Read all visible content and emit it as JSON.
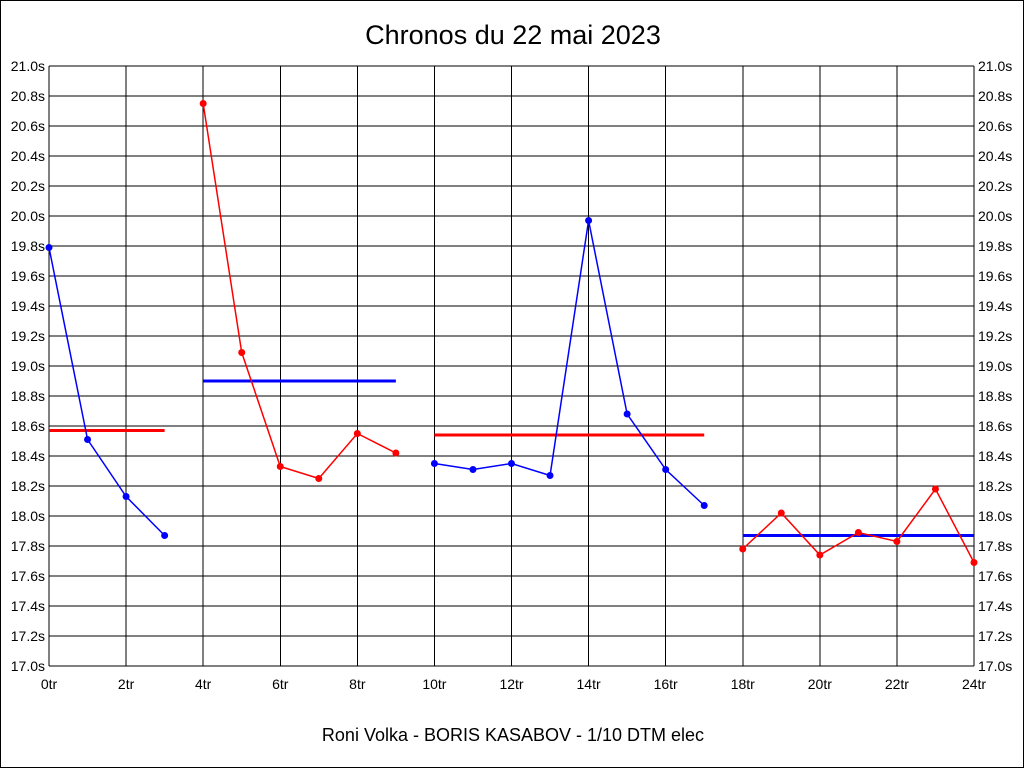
{
  "chart_data": {
    "type": "line",
    "title": "Chronos du 22 mai 2023",
    "xlabel": "Roni Volka - BORIS KASABOV - 1/10 DTM elec",
    "ylabel": "",
    "xlim": [
      0,
      24
    ],
    "ylim": [
      17.0,
      21.0
    ],
    "grid": true,
    "x_ticks": [
      "0tr",
      "2tr",
      "4tr",
      "6tr",
      "8tr",
      "10tr",
      "12tr",
      "14tr",
      "16tr",
      "18tr",
      "20tr",
      "22tr",
      "24tr"
    ],
    "y_ticks": [
      "17.0s",
      "17.2s",
      "17.4s",
      "17.6s",
      "17.8s",
      "18.0s",
      "18.2s",
      "18.4s",
      "18.6s",
      "18.8s",
      "19.0s",
      "19.2s",
      "19.4s",
      "19.6s",
      "19.8s",
      "20.0s",
      "20.2s",
      "20.4s",
      "20.6s",
      "20.8s",
      "21.0s"
    ],
    "colors": {
      "blue": "#0000ff",
      "red": "#ff0000",
      "grid": "#000000"
    },
    "series": [
      {
        "color": "#0000ff",
        "x": [
          0,
          1,
          2,
          3
        ],
        "y": [
          19.79,
          18.51,
          18.13,
          17.87
        ],
        "average": 18.57,
        "average_color": "#ff0000"
      },
      {
        "color": "#ff0000",
        "x": [
          4,
          5,
          6,
          7,
          8,
          9
        ],
        "y": [
          20.75,
          19.09,
          18.33,
          18.25,
          18.55,
          18.42
        ],
        "average": 18.9,
        "average_color": "#0000ff"
      },
      {
        "color": "#0000ff",
        "x": [
          10,
          11,
          12,
          13,
          14,
          15,
          16,
          17
        ],
        "y": [
          18.35,
          18.31,
          18.35,
          18.27,
          19.97,
          18.68,
          18.31,
          18.07
        ],
        "average": 18.54,
        "average_color": "#ff0000"
      },
      {
        "color": "#ff0000",
        "x": [
          18,
          19,
          20,
          21,
          22,
          23,
          24
        ],
        "y": [
          17.78,
          18.02,
          17.74,
          17.89,
          17.83,
          18.18,
          17.69
        ],
        "average": 17.87,
        "average_color": "#0000ff"
      }
    ]
  }
}
